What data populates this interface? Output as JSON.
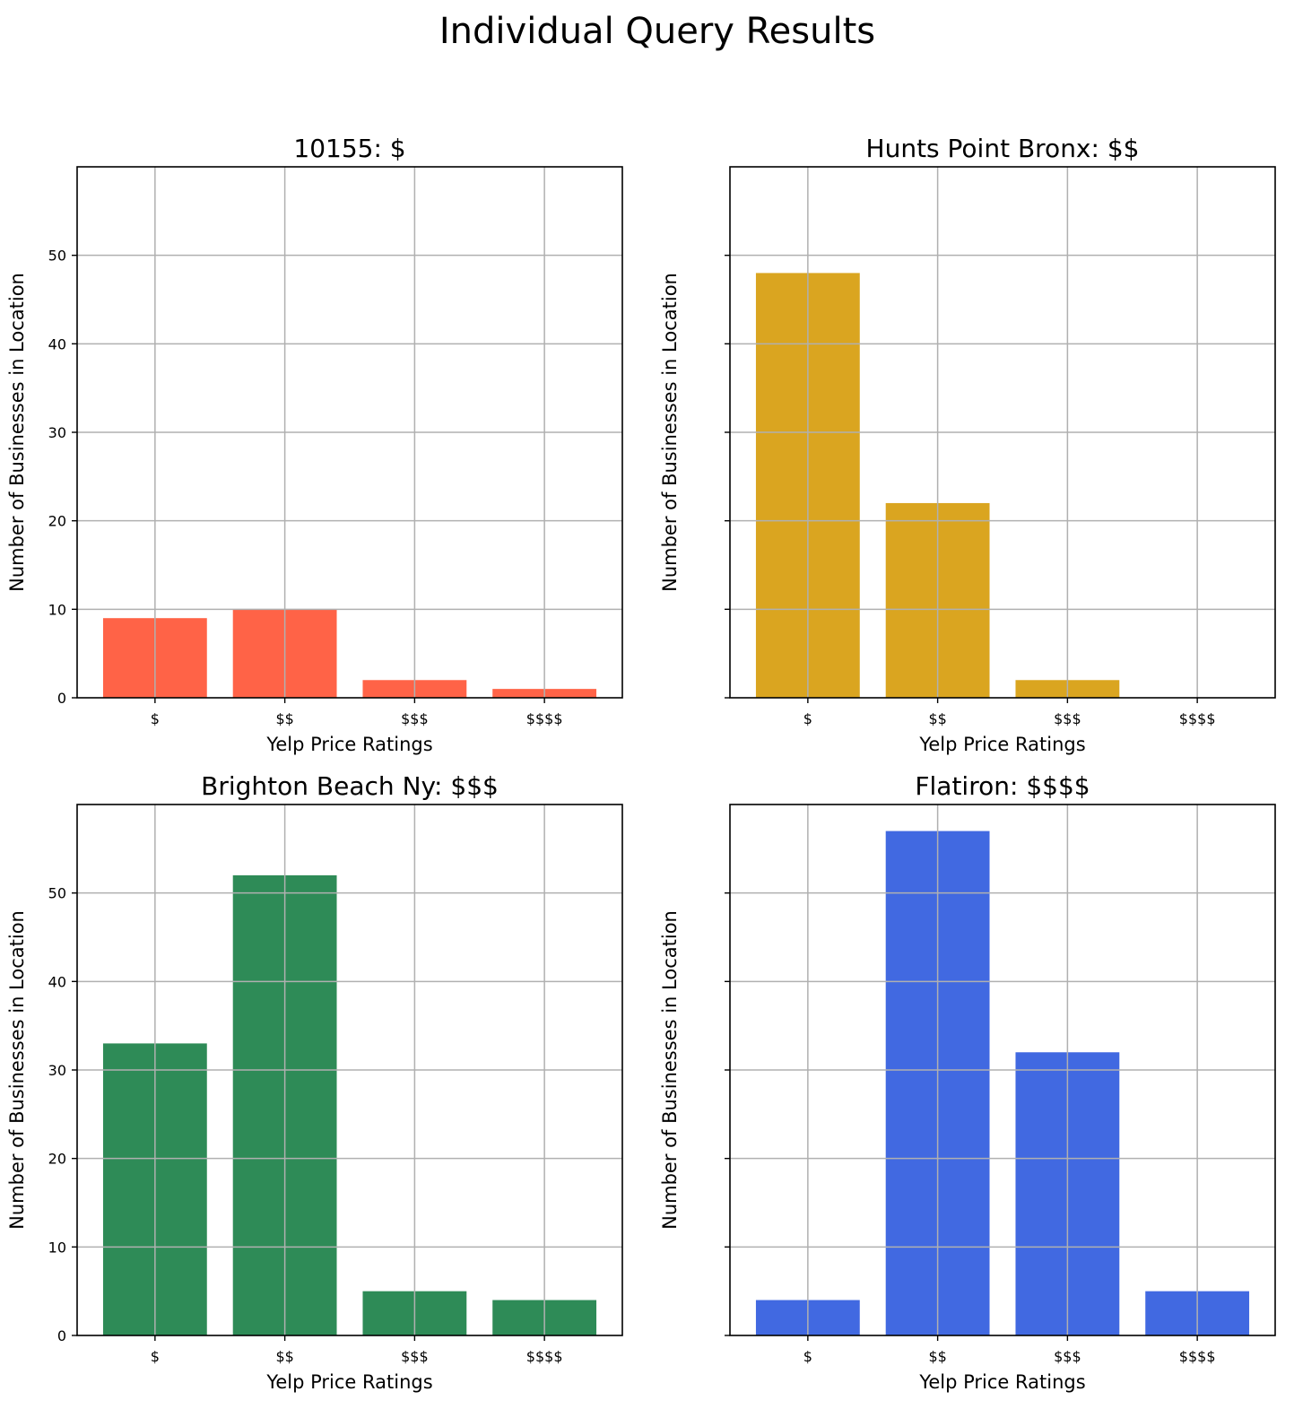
{
  "figure": {
    "suptitle": "Individual Query Results"
  },
  "chart_data": [
    {
      "type": "bar",
      "title": "10155: $",
      "xlabel": "Yelp Price Ratings",
      "ylabel": "Number of Businesses in Location",
      "categories": [
        "$",
        "$$",
        "$$$",
        "$$$$"
      ],
      "values": [
        9,
        10,
        2,
        1
      ],
      "color": "#FF6347",
      "ylim": [
        0,
        60
      ],
      "yticks": [
        0,
        10,
        20,
        30,
        40,
        50
      ],
      "ytick_labels_visible": true,
      "grid": true
    },
    {
      "type": "bar",
      "title": "Hunts Point Bronx: $$",
      "xlabel": "Yelp Price Ratings",
      "ylabel": "Number of Businesses in Location",
      "categories": [
        "$",
        "$$",
        "$$$",
        "$$$$"
      ],
      "values": [
        48,
        22,
        2,
        0
      ],
      "color": "#DAA520",
      "ylim": [
        0,
        60
      ],
      "yticks": [
        0,
        10,
        20,
        30,
        40,
        50
      ],
      "ytick_labels_visible": false,
      "grid": true
    },
    {
      "type": "bar",
      "title": "Brighton Beach Ny: $$$",
      "xlabel": "Yelp Price Ratings",
      "ylabel": "Number of Businesses in Location",
      "categories": [
        "$",
        "$$",
        "$$$",
        "$$$$"
      ],
      "values": [
        33,
        52,
        5,
        4
      ],
      "color": "#2E8B57",
      "ylim": [
        0,
        60
      ],
      "yticks": [
        0,
        10,
        20,
        30,
        40,
        50
      ],
      "ytick_labels_visible": true,
      "grid": true
    },
    {
      "type": "bar",
      "title": "Flatiron: $$$$",
      "xlabel": "Yelp Price Ratings",
      "ylabel": "Number of Businesses in Location",
      "categories": [
        "$",
        "$$",
        "$$$",
        "$$$$"
      ],
      "values": [
        4,
        57,
        32,
        5
      ],
      "color": "#4169E1",
      "ylim": [
        0,
        60
      ],
      "yticks": [
        0,
        10,
        20,
        30,
        40,
        50
      ],
      "ytick_labels_visible": false,
      "grid": true
    }
  ]
}
